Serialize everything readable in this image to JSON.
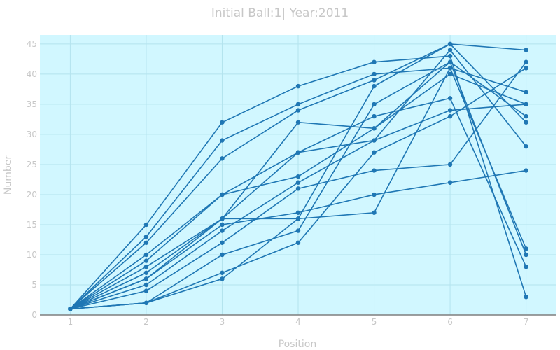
{
  "chart_data": {
    "type": "line",
    "title": "Initial Ball:1| Year:2011",
    "xlabel": "Position",
    "ylabel": "Number",
    "x": [
      1,
      2,
      3,
      4,
      5,
      6,
      7
    ],
    "xlim": [
      0.6,
      7.4
    ],
    "ylim": [
      0,
      46.5
    ],
    "x_ticks": [
      1,
      2,
      3,
      4,
      5,
      6,
      7
    ],
    "y_ticks": [
      0,
      5,
      10,
      15,
      20,
      25,
      30,
      35,
      40,
      45
    ],
    "grid": true,
    "legend": "none",
    "colors": {
      "line": "#1f77b4",
      "plot_bg": "#d1f7ff",
      "grid": "#b4e3ee",
      "text": "#c7c7c7",
      "axis": "#7f7f7f"
    },
    "series": [
      {
        "values": [
          1,
          15,
          32,
          38,
          42,
          43,
          3
        ]
      },
      {
        "values": [
          1,
          13,
          29,
          35,
          40,
          41,
          37
        ]
      },
      {
        "values": [
          1,
          12,
          26,
          34,
          39,
          45,
          44
        ]
      },
      {
        "values": [
          1,
          10,
          20,
          27,
          33,
          36,
          8
        ]
      },
      {
        "values": [
          1,
          9,
          20,
          23,
          31,
          42,
          33
        ]
      },
      {
        "values": [
          1,
          8,
          16,
          32,
          31,
          40,
          35
        ]
      },
      {
        "values": [
          1,
          7,
          16,
          27,
          29,
          34,
          35
        ]
      },
      {
        "values": [
          1,
          6,
          15,
          17,
          20,
          22,
          24
        ]
      },
      {
        "values": [
          1,
          5,
          14,
          22,
          29,
          44,
          28
        ]
      },
      {
        "values": [
          1,
          4,
          12,
          21,
          24,
          25,
          42
        ]
      },
      {
        "values": [
          1,
          6,
          16,
          16,
          17,
          41,
          11
        ]
      },
      {
        "values": [
          1,
          2,
          10,
          14,
          35,
          42,
          10
        ]
      },
      {
        "values": [
          1,
          2,
          7,
          12,
          27,
          33,
          41
        ]
      },
      {
        "values": [
          1,
          2,
          6,
          16,
          38,
          45,
          32
        ]
      }
    ]
  }
}
